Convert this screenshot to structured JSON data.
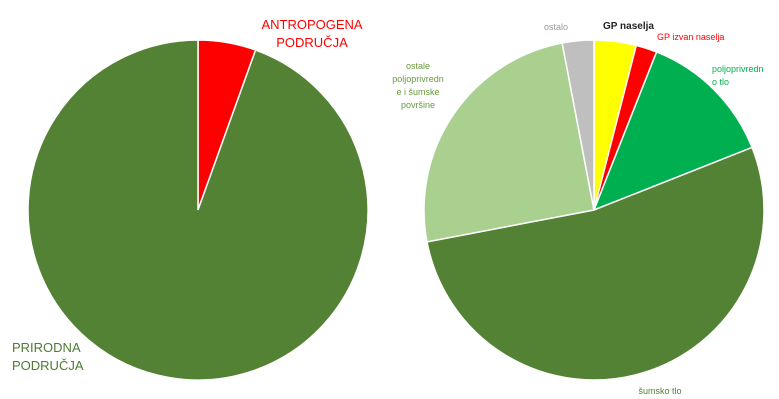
{
  "chart_data": [
    {
      "type": "pie",
      "title": "",
      "slices": [
        {
          "label_lines": [
            "ANTROPOGENA",
            "PODRUČJA"
          ],
          "value": 5.5,
          "color": "#ff0000",
          "label_color": "#ff0000"
        },
        {
          "label_lines": [
            "PRIRODNA",
            "PODRUČJA"
          ],
          "value": 94.5,
          "color": "#548235",
          "label_color": "#4e7a33"
        }
      ]
    },
    {
      "type": "pie",
      "title": "",
      "slices": [
        {
          "label_lines": [
            "GP naselja"
          ],
          "value": 4,
          "color": "#ffff00",
          "label_color": "#222222"
        },
        {
          "label_lines": [
            "GP izvan naselja"
          ],
          "value": 2,
          "color": "#ff0000",
          "label_color": "#ff0000"
        },
        {
          "label_lines": [
            "poljoprivredn",
            "o tlo"
          ],
          "value": 13,
          "color": "#00b050",
          "label_color": "#00b050"
        },
        {
          "label_lines": [
            "šumsko tlo"
          ],
          "value": 53,
          "color": "#548235",
          "label_color": "#548235"
        },
        {
          "label_lines": [
            "ostale",
            "poljoprivredn",
            "e i šumske",
            "površine"
          ],
          "value": 25,
          "color": "#a9d08e",
          "label_color": "#6a9a3f"
        },
        {
          "label_lines": [
            "ostalo"
          ],
          "value": 3,
          "color": "#bfbfbf",
          "label_color": "#9a9a9a"
        }
      ]
    }
  ]
}
